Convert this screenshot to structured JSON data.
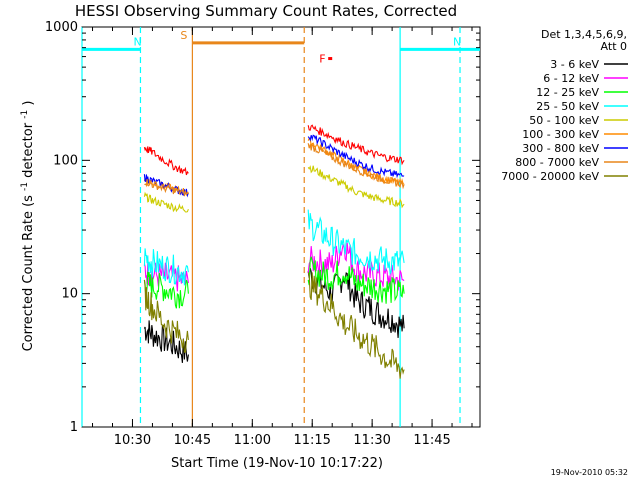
{
  "chart_data": {
    "type": "line",
    "title": "HESSI Observing Summary Count Rates, Corrected",
    "xlabel": "Start Time (19-Nov-10 10:17:22)",
    "ylabel": "Corrected Count Rate (s⁻¹ detector⁻¹)",
    "ylabel_parts": [
      "Corrected Count Rate (s",
      "-1",
      " detector",
      "-1",
      ")"
    ],
    "yscale": "log",
    "ylim": [
      1,
      1000
    ],
    "xlim": [
      "10:17:22",
      "11:57:00"
    ],
    "x_ticks": [
      "10:30",
      "10:45",
      "11:00",
      "11:15",
      "11:30",
      "11:45"
    ],
    "y_ticks": [
      "1",
      "10",
      "100",
      "1000"
    ],
    "legend_header": [
      "Det 1,3,4,5,6,9,",
      "Att 0"
    ],
    "legend_position": "right",
    "footer_date": "19-Nov-2010 05:32",
    "series_colors": [
      "#000000",
      "#ff00ff",
      "#00ff00",
      "#00ffff",
      "#cccc00",
      "#ff8c00",
      "#0000ff",
      "#e8861a",
      "#808000",
      "#ff0000"
    ],
    "series": [
      {
        "name": "3 - 6 keV",
        "color": "#000000",
        "segments": [
          {
            "x": [
              "10:33",
              "10:35",
              "10:38",
              "10:41",
              "10:44"
            ],
            "y": [
              5.5,
              5,
              4.5,
              4,
              3.5
            ]
          },
          {
            "x": [
              "11:14",
              "11:17",
              "11:20",
              "11:23",
              "11:26",
              "11:29",
              "11:32",
              "11:35",
              "11:38"
            ],
            "y": [
              14,
              12,
              10,
              14,
              9,
              8,
              7,
              6.5,
              5.5
            ]
          }
        ]
      },
      {
        "name": "6 - 12 keV",
        "color": "#ff00ff",
        "segments": [
          {
            "x": [
              "10:33",
              "10:35",
              "10:38",
              "10:41",
              "10:44"
            ],
            "y": [
              15,
              14,
              13.5,
              13,
              12
            ]
          },
          {
            "x": [
              "11:14",
              "11:17",
              "11:20",
              "11:23",
              "11:26",
              "11:29",
              "11:32",
              "11:35",
              "11:38"
            ],
            "y": [
              18,
              17,
              16.5,
              24,
              15,
              14,
              13.5,
              13,
              12.5
            ]
          }
        ]
      },
      {
        "name": "12 - 25 keV",
        "color": "#00ff00",
        "segments": [
          {
            "x": [
              "10:33",
              "10:35",
              "10:38",
              "10:41",
              "10:44"
            ],
            "y": [
              12,
              11.5,
              11,
              10,
              10
            ]
          },
          {
            "x": [
              "11:14",
              "11:17",
              "11:20",
              "11:23",
              "11:26",
              "11:29",
              "11:32",
              "11:35",
              "11:38"
            ],
            "y": [
              15,
              14,
              13.5,
              15,
              12,
              11.5,
              11,
              10.5,
              10
            ]
          }
        ]
      },
      {
        "name": "25 - 50 keV",
        "color": "#00ffff",
        "segments": [
          {
            "x": [
              "10:33",
              "10:35",
              "10:38",
              "10:41",
              "10:44"
            ],
            "y": [
              19,
              17,
              16,
              15,
              14.5
            ]
          },
          {
            "x": [
              "11:14",
              "11:17",
              "11:20",
              "11:23",
              "11:26",
              "11:29",
              "11:32",
              "11:35",
              "11:38"
            ],
            "y": [
              34,
              29,
              25,
              22,
              20,
              19,
              18,
              17.5,
              17
            ]
          }
        ]
      },
      {
        "name": "50 - 100 keV",
        "color": "#cccc00",
        "segments": [
          {
            "x": [
              "10:33",
              "10:35",
              "10:38",
              "10:41",
              "10:44"
            ],
            "y": [
              54,
              50,
              47,
              44,
              43
            ]
          },
          {
            "x": [
              "11:14",
              "11:17",
              "11:20",
              "11:23",
              "11:26",
              "11:29",
              "11:32",
              "11:35",
              "11:38"
            ],
            "y": [
              90,
              80,
              72,
              65,
              58,
              54,
              51,
              49,
              47
            ]
          }
        ]
      },
      {
        "name": "100 - 300 keV",
        "color": "#ff8c00",
        "segments": [
          {
            "x": [
              "10:33",
              "10:35",
              "10:38",
              "10:41",
              "10:44"
            ],
            "y": [
              72,
              68,
              64,
              60,
              58
            ]
          },
          {
            "x": [
              "11:14",
              "11:17",
              "11:20",
              "11:23",
              "11:26",
              "11:29",
              "11:32",
              "11:35",
              "11:38"
            ],
            "y": [
              140,
              125,
              110,
              98,
              88,
              80,
              74,
              70,
              66
            ]
          }
        ]
      },
      {
        "name": "300 - 800 keV",
        "color": "#0000ff",
        "segments": [
          {
            "x": [
              "10:33",
              "10:35",
              "10:38",
              "10:41",
              "10:44"
            ],
            "y": [
              75,
              70,
              65,
              60,
              57
            ]
          },
          {
            "x": [
              "11:14",
              "11:17",
              "11:20",
              "11:23",
              "11:26",
              "11:29",
              "11:32",
              "11:35",
              "11:38"
            ],
            "y": [
              155,
              138,
              122,
              108,
              97,
              89,
              83,
              79,
              76
            ]
          }
        ]
      },
      {
        "name": "800 - 7000 keV",
        "color": "#e8861a",
        "segments": [
          {
            "x": [
              "10:33",
              "10:35",
              "10:38",
              "10:41",
              "10:44"
            ],
            "y": [
              70,
              66,
              62,
              59,
              56
            ]
          },
          {
            "x": [
              "11:14",
              "11:17",
              "11:20",
              "11:23",
              "11:26",
              "11:29",
              "11:32",
              "11:35",
              "11:38"
            ],
            "y": [
              130,
              118,
              105,
              95,
              86,
              79,
              73,
              69,
              66
            ]
          }
        ]
      },
      {
        "name": "7000 - 20000 keV",
        "color": "#808000",
        "segments": [
          {
            "x": [
              "10:33",
              "10:35",
              "10:38",
              "10:41",
              "10:44"
            ],
            "y": [
              10,
              8,
              6,
              5,
              4.5
            ]
          },
          {
            "x": [
              "11:14",
              "11:17",
              "11:20",
              "11:23",
              "11:26",
              "11:29",
              "11:32",
              "11:35",
              "11:38"
            ],
            "y": [
              12,
              10,
              8,
              6,
              5,
              4.3,
              3.6,
              3,
              2.7
            ]
          }
        ]
      },
      {
        "color": "#ff0000",
        "segments": [
          {
            "x": [
              "10:33",
              "10:35",
              "10:38",
              "10:41",
              "10:44"
            ],
            "y": [
              125,
              115,
              100,
              88,
              80
            ]
          },
          {
            "x": [
              "11:14",
              "11:17",
              "11:20",
              "11:23",
              "11:26",
              "11:29",
              "11:32",
              "11:35",
              "11:38"
            ],
            "y": [
              180,
              165,
              150,
              135,
              125,
              115,
              108,
              103,
              100
            ]
          }
        ]
      }
    ],
    "flags": [
      {
        "label": "N",
        "color": "#00ffff",
        "x_start": "10:17:22",
        "x_end": "10:32",
        "y": 680,
        "end_marker_x": "10:32"
      },
      {
        "label": "S",
        "color": "#e8861a",
        "x_start": "10:45",
        "x_end": "11:13",
        "y": 760,
        "end_marker_x": "11:13"
      },
      {
        "label": "N",
        "color": "#00ffff",
        "x_start": "11:37",
        "x_end": "11:57:00",
        "y": 680,
        "end_marker_x": "11:52"
      },
      {
        "label": "F",
        "color": "#ff0000",
        "x_start": "11:19",
        "x_end": "11:20",
        "y": 580
      }
    ],
    "vlines": [
      {
        "x": "10:17:22",
        "color": "#00ffff",
        "style": "solid"
      },
      {
        "x": "10:32",
        "color": "#00ffff",
        "style": "dashed"
      },
      {
        "x": "10:45",
        "color": "#e8861a",
        "style": "solid"
      },
      {
        "x": "11:13",
        "color": "#e8861a",
        "style": "dashed"
      },
      {
        "x": "11:37",
        "color": "#00ffff",
        "style": "solid"
      },
      {
        "x": "11:52",
        "color": "#00ffff",
        "style": "dashed"
      }
    ]
  }
}
